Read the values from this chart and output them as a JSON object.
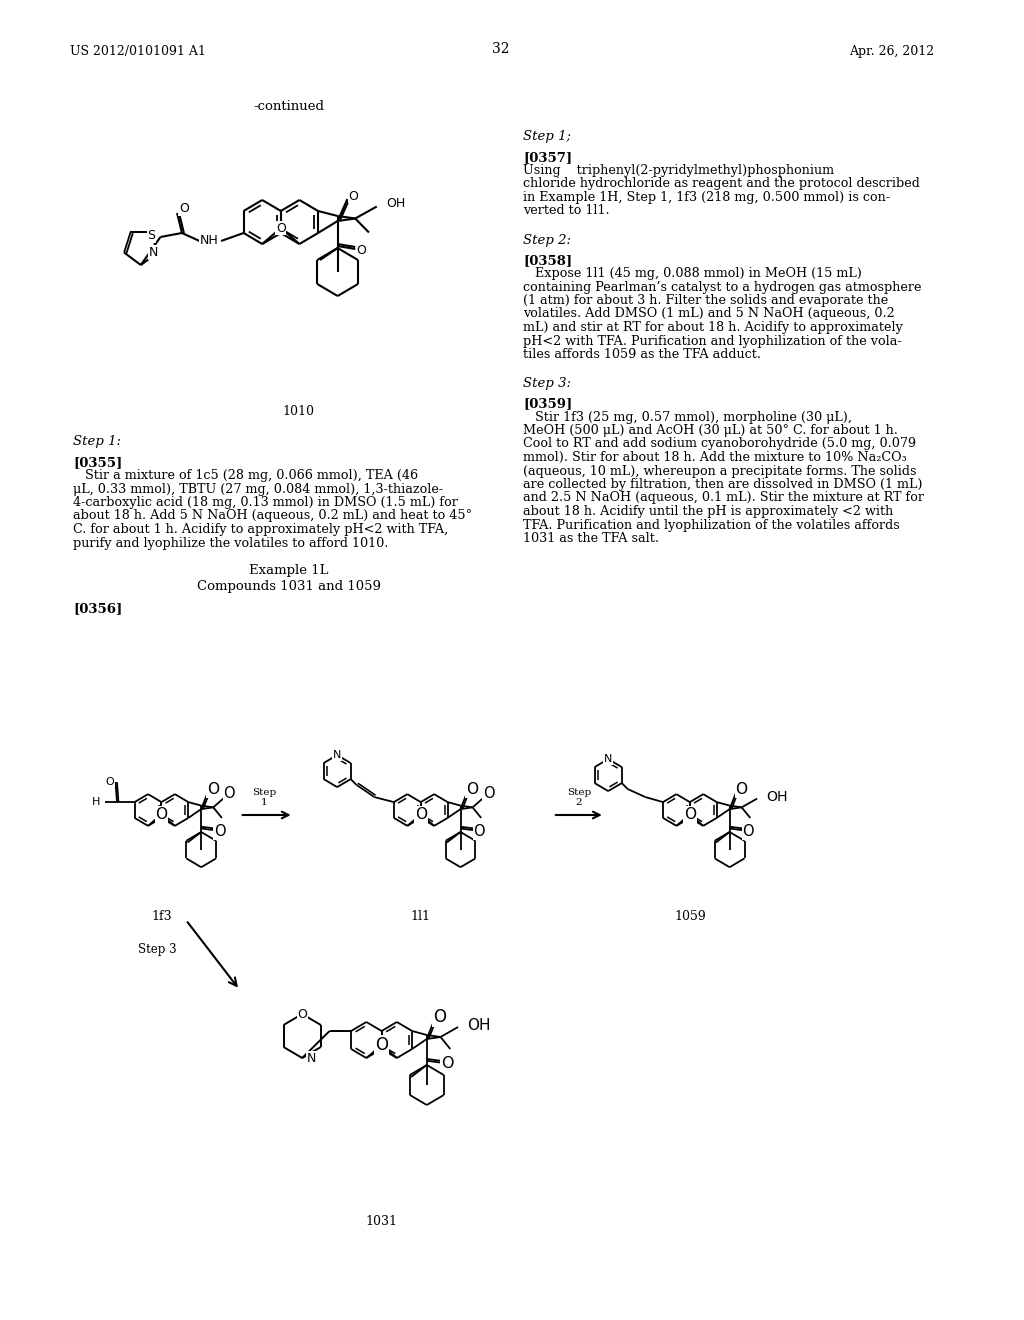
{
  "bg_color": "#ffffff",
  "header_left": "US 2012/0101091 A1",
  "header_right": "Apr. 26, 2012",
  "page_number": "32",
  "continued_text": "-continued",
  "compound_1010_label": "1010",
  "step1_header_left": "Step 1:",
  "step1_header_right": "Step 1;",
  "para_0355_bold": "[0355]",
  "example_1L": "Example 1L",
  "compounds_1031_1059": "Compounds 1031 and 1059",
  "para_0356_bold": "[0356]",
  "step2_header_right": "Step 2:",
  "para_0357_bold": "[0357]",
  "step3_header_right": "Step 3:",
  "para_0358_bold": "[0358]",
  "para_0359_bold": "[0359]",
  "scheme_label_1f3": "1f3",
  "scheme_label_1l1": "1l1",
  "scheme_label_1059": "1059",
  "scheme_label_1031": "1031",
  "p355_lines": [
    "   Stir a mixture of 1c5 (28 mg, 0.066 mmol), TEA (46",
    "μL, 0.33 mmol), TBTU (27 mg, 0.084 mmol), 1,3-thiazole-",
    "4-carboxylic acid (18 mg, 0.13 mmol) in DMSO (1.5 mL) for",
    "about 18 h. Add 5 N NaOH (aqueous, 0.2 mL) and heat to 45°",
    "C. for about 1 h. Acidify to approximately pH<2 with TFA,",
    "purify and lyophilize the volatiles to afford 1010."
  ],
  "p357_lines": [
    "Using    triphenyl(2-pyridylmethyl)phosphonium",
    "chloride hydrochloride as reagent and the protocol described",
    "in Example 1H, Step 1, 1f3 (218 mg, 0.500 mmol) is con-",
    "verted to 1l1."
  ],
  "p358_lines": [
    "   Expose 1l1 (45 mg, 0.088 mmol) in MeOH (15 mL)",
    "containing Pearlman’s catalyst to a hydrogen gas atmosphere",
    "(1 atm) for about 3 h. Filter the solids and evaporate the",
    "volatiles. Add DMSO (1 mL) and 5 N NaOH (aqueous, 0.2",
    "mL) and stir at RT for about 18 h. Acidify to approximately",
    "pH<2 with TFA. Purification and lyophilization of the vola-",
    "tiles affords 1059 as the TFA adduct."
  ],
  "p359_lines": [
    "   Stir 1f3 (25 mg, 0.57 mmol), morpholine (30 μL),",
    "MeOH (500 μL) and AcOH (30 μL) at 50° C. for about 1 h.",
    "Cool to RT and add sodium cyanoborohydride (5.0 mg, 0.079",
    "mmol). Stir for about 18 h. Add the mixture to 10% Na₂CO₃",
    "(aqueous, 10 mL), whereupon a precipitate forms. The solids",
    "are collected by filtration, then are dissolved in DMSO (1 mL)",
    "and 2.5 N NaOH (aqueous, 0.1 mL). Stir the mixture at RT for",
    "about 18 h. Acidify until the pH is approximately <2 with",
    "TFA. Purification and lyophilization of the volatiles affords",
    "1031 as the TFA salt."
  ]
}
